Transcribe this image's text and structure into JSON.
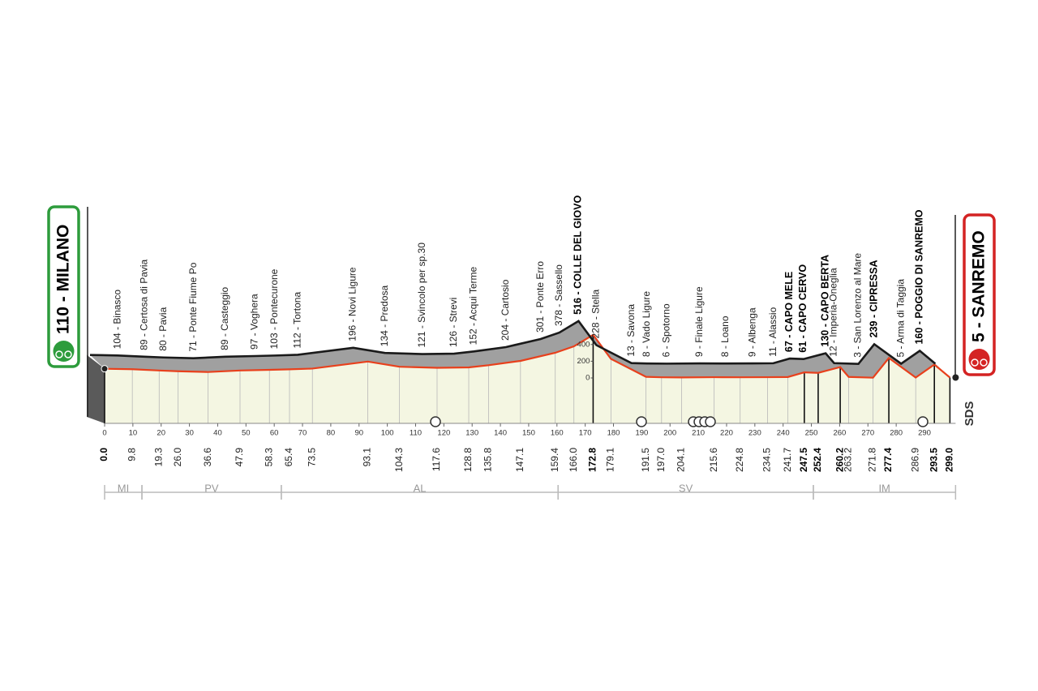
{
  "chart_data": {
    "type": "profile",
    "x": [
      0,
      9.8,
      19.3,
      26.0,
      36.6,
      47.9,
      58.3,
      65.4,
      73.5,
      93.1,
      104.3,
      117.6,
      128.8,
      135.8,
      147.1,
      159.4,
      166.0,
      172.8,
      179.1,
      191.5,
      197.0,
      204.1,
      215.6,
      224.8,
      234.5,
      241.7,
      247.5,
      252.4,
      260.2,
      263.2,
      271.8,
      277.4,
      286.9,
      293.5,
      299.0
    ],
    "x_labels": [
      "0.0",
      "9.8",
      "19.3",
      "26.0",
      "36.6",
      "47.9",
      "58.3",
      "65.4",
      "73.5",
      "93.1",
      "104.3",
      "117.6",
      "128.8",
      "135.8",
      "147.1",
      "159.4",
      "166.0",
      "172.8",
      "179.1",
      "191.5",
      "197.0",
      "204.1",
      "215.6",
      "224.8",
      "234.5",
      "241.7",
      "247.5",
      "252.4",
      "260.2",
      "263.2",
      "271.8",
      "277.4",
      "286.9",
      "293.5",
      "299.0"
    ],
    "values": [
      110,
      104,
      89,
      80,
      71,
      89,
      97,
      103,
      112,
      196,
      134,
      121,
      126,
      152,
      204,
      301,
      378,
      516,
      228,
      13,
      8,
      6,
      9,
      8,
      9,
      11,
      67,
      61,
      130,
      12,
      3,
      239,
      5,
      160,
      5
    ],
    "value_labels": [
      "110 - MILANO",
      "104 - Binasco",
      "89 - Certosa di Pavia",
      "80 - Pavia",
      "71 - Ponte Fiume Po",
      "89 - Casteggio",
      "97 - Voghera",
      "103 - Pontecurone",
      "112 - Tortona",
      "196 - Novi Ligure",
      "134 - Predosa",
      "121 - Svincolo per sp.30",
      "126 - Strevi",
      "152 - Acqui Terme",
      "204 - Cartosio",
      "301 - Ponte Erro",
      "378 - Sassello",
      "516 - COLLE DEL GIOVO",
      "228 - Stella",
      "13 - Savona",
      "8 - Vado Ligure",
      "6 - Spotorno",
      "9 - Finale Ligure",
      "8 - Loano",
      "9 - Albenga",
      "11 - Alassio",
      "67 - CAPO MELE",
      "61 - CAPO CERVO",
      "130 - CAPO BERTA",
      "12 - Imperia-Oneglia",
      "3 - San Lorenzo al Mare",
      "239 - CIPRESSA",
      "5 - Arma di Taggia",
      "160 - POGGIO DI SANREMO",
      "5 - SANREMO"
    ],
    "bold": [
      true,
      false,
      false,
      false,
      false,
      false,
      false,
      false,
      false,
      false,
      false,
      false,
      false,
      false,
      false,
      false,
      false,
      true,
      false,
      false,
      false,
      false,
      false,
      false,
      false,
      false,
      true,
      true,
      true,
      false,
      false,
      true,
      false,
      true,
      true
    ],
    "xlim": [
      0,
      299
    ],
    "ylim": [
      0,
      560
    ],
    "xticks": [
      0,
      10,
      20,
      30,
      40,
      50,
      60,
      70,
      80,
      90,
      100,
      110,
      120,
      130,
      140,
      150,
      160,
      170,
      180,
      190,
      200,
      210,
      220,
      230,
      240,
      250,
      260,
      270,
      280,
      290
    ],
    "yticks": [
      0,
      200,
      400
    ],
    "color": "#e8401c",
    "regions": [
      {
        "label": "MI",
        "from": 0,
        "to": 13.2
      },
      {
        "label": "PV",
        "from": 13.2,
        "to": 62.5
      },
      {
        "label": "AL",
        "from": 62.5,
        "to": 160.4
      },
      {
        "label": "SV",
        "from": 160.4,
        "to": 250.7
      },
      {
        "label": "IM",
        "from": 250.7,
        "to": 301
      }
    ],
    "logo": "SDS"
  }
}
